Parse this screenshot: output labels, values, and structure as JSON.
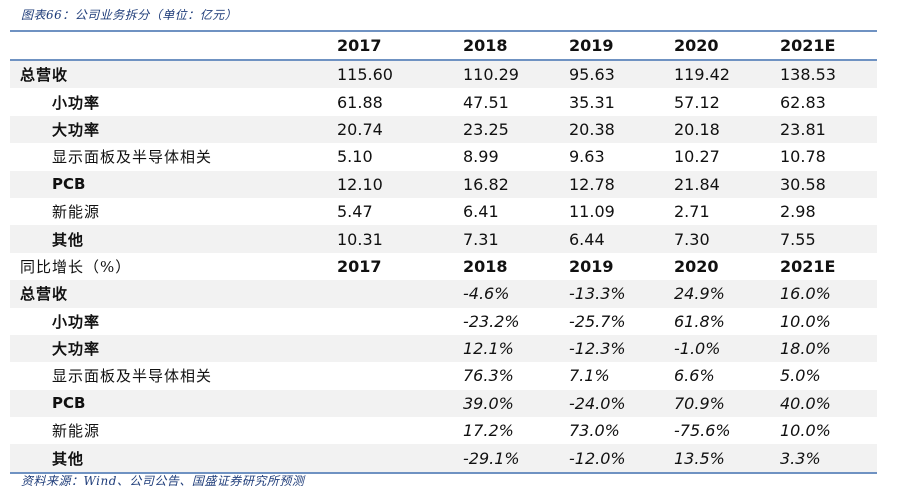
{
  "caption": "图表66：公司业务拆分（单位：亿元）",
  "source": "资料来源：Wind、公司公告、国盛证券研究所预测",
  "header": {
    "label": "",
    "years": [
      "2017",
      "2018",
      "2019",
      "2020",
      "2021E"
    ]
  },
  "revenue_rows": [
    {
      "label": "总营收",
      "values": [
        "115.60",
        "110.29",
        "95.63",
        "119.42",
        "138.53"
      ]
    },
    {
      "label": "小功率",
      "values": [
        "61.88",
        "47.51",
        "35.31",
        "57.12",
        "62.83"
      ]
    },
    {
      "label": "大功率",
      "values": [
        "20.74",
        "23.25",
        "20.38",
        "20.18",
        "23.81"
      ]
    },
    {
      "label": "显示面板及半导体相关",
      "values": [
        "5.10",
        "8.99",
        "9.63",
        "10.27",
        "10.78"
      ]
    },
    {
      "label": "PCB",
      "values": [
        "12.10",
        "16.82",
        "12.78",
        "21.84",
        "30.58"
      ]
    },
    {
      "label": "新能源",
      "values": [
        "5.47",
        "6.41",
        "11.09",
        "2.71",
        "2.98"
      ]
    },
    {
      "label": "其他",
      "values": [
        "10.31",
        "7.31",
        "6.44",
        "7.30",
        "7.55"
      ]
    }
  ],
  "growth_header": {
    "label": "同比增长（%）",
    "years": [
      "2017",
      "2018",
      "2019",
      "2020",
      "2021E"
    ]
  },
  "growth_rows": [
    {
      "label": "总营收",
      "values": [
        "",
        "-4.6%",
        "-13.3%",
        "24.9%",
        "16.0%"
      ]
    },
    {
      "label": "小功率",
      "values": [
        "",
        "-23.2%",
        "-25.7%",
        "61.8%",
        "10.0%"
      ]
    },
    {
      "label": "大功率",
      "values": [
        "",
        "12.1%",
        "-12.3%",
        "-1.0%",
        "18.0%"
      ]
    },
    {
      "label": "显示面板及半导体相关",
      "values": [
        "",
        "76.3%",
        "7.1%",
        "6.6%",
        "5.0%"
      ]
    },
    {
      "label": "PCB",
      "values": [
        "",
        "39.0%",
        "-24.0%",
        "70.9%",
        "40.0%"
      ]
    },
    {
      "label": "新能源",
      "values": [
        "",
        "17.2%",
        "73.0%",
        "-75.6%",
        "10.0%"
      ]
    },
    {
      "label": "其他",
      "values": [
        "",
        "-29.1%",
        "-12.0%",
        "13.5%",
        "3.3%"
      ]
    }
  ],
  "colors": {
    "rule": "#6f92c2",
    "band": "#f2f2f2",
    "caption": "#1f3d7a"
  }
}
